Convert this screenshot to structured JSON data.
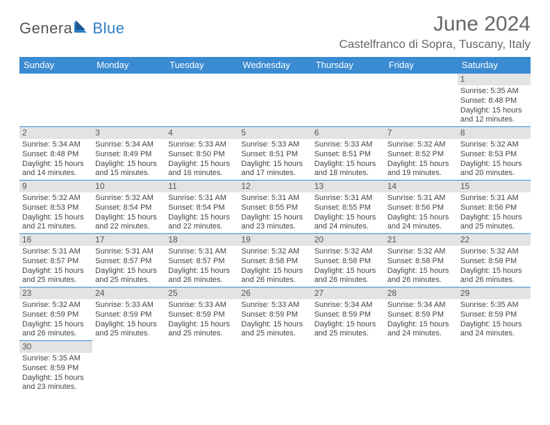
{
  "brand": {
    "part1": "Genera",
    "part2": "Blue"
  },
  "title": "June 2024",
  "location": "Castelfranco di Sopra, Tuscany, Italy",
  "colors": {
    "header_bg": "#3a8bd1",
    "header_fg": "#ffffff",
    "daynum_bg": "#e3e3e3",
    "border": "#3a8bd1",
    "brand_blue": "#2d7dc4",
    "brand_grey": "#555555",
    "text": "#444444"
  },
  "day_headers": [
    "Sunday",
    "Monday",
    "Tuesday",
    "Wednesday",
    "Thursday",
    "Friday",
    "Saturday"
  ],
  "weeks": [
    [
      null,
      null,
      null,
      null,
      null,
      null,
      {
        "n": "1",
        "sunrise": "Sunrise: 5:35 AM",
        "sunset": "Sunset: 8:48 PM",
        "daylight1": "Daylight: 15 hours",
        "daylight2": "and 12 minutes."
      }
    ],
    [
      {
        "n": "2",
        "sunrise": "Sunrise: 5:34 AM",
        "sunset": "Sunset: 8:48 PM",
        "daylight1": "Daylight: 15 hours",
        "daylight2": "and 14 minutes."
      },
      {
        "n": "3",
        "sunrise": "Sunrise: 5:34 AM",
        "sunset": "Sunset: 8:49 PM",
        "daylight1": "Daylight: 15 hours",
        "daylight2": "and 15 minutes."
      },
      {
        "n": "4",
        "sunrise": "Sunrise: 5:33 AM",
        "sunset": "Sunset: 8:50 PM",
        "daylight1": "Daylight: 15 hours",
        "daylight2": "and 16 minutes."
      },
      {
        "n": "5",
        "sunrise": "Sunrise: 5:33 AM",
        "sunset": "Sunset: 8:51 PM",
        "daylight1": "Daylight: 15 hours",
        "daylight2": "and 17 minutes."
      },
      {
        "n": "6",
        "sunrise": "Sunrise: 5:33 AM",
        "sunset": "Sunset: 8:51 PM",
        "daylight1": "Daylight: 15 hours",
        "daylight2": "and 18 minutes."
      },
      {
        "n": "7",
        "sunrise": "Sunrise: 5:32 AM",
        "sunset": "Sunset: 8:52 PM",
        "daylight1": "Daylight: 15 hours",
        "daylight2": "and 19 minutes."
      },
      {
        "n": "8",
        "sunrise": "Sunrise: 5:32 AM",
        "sunset": "Sunset: 8:53 PM",
        "daylight1": "Daylight: 15 hours",
        "daylight2": "and 20 minutes."
      }
    ],
    [
      {
        "n": "9",
        "sunrise": "Sunrise: 5:32 AM",
        "sunset": "Sunset: 8:53 PM",
        "daylight1": "Daylight: 15 hours",
        "daylight2": "and 21 minutes."
      },
      {
        "n": "10",
        "sunrise": "Sunrise: 5:32 AM",
        "sunset": "Sunset: 8:54 PM",
        "daylight1": "Daylight: 15 hours",
        "daylight2": "and 22 minutes."
      },
      {
        "n": "11",
        "sunrise": "Sunrise: 5:31 AM",
        "sunset": "Sunset: 8:54 PM",
        "daylight1": "Daylight: 15 hours",
        "daylight2": "and 22 minutes."
      },
      {
        "n": "12",
        "sunrise": "Sunrise: 5:31 AM",
        "sunset": "Sunset: 8:55 PM",
        "daylight1": "Daylight: 15 hours",
        "daylight2": "and 23 minutes."
      },
      {
        "n": "13",
        "sunrise": "Sunrise: 5:31 AM",
        "sunset": "Sunset: 8:55 PM",
        "daylight1": "Daylight: 15 hours",
        "daylight2": "and 24 minutes."
      },
      {
        "n": "14",
        "sunrise": "Sunrise: 5:31 AM",
        "sunset": "Sunset: 8:56 PM",
        "daylight1": "Daylight: 15 hours",
        "daylight2": "and 24 minutes."
      },
      {
        "n": "15",
        "sunrise": "Sunrise: 5:31 AM",
        "sunset": "Sunset: 8:56 PM",
        "daylight1": "Daylight: 15 hours",
        "daylight2": "and 25 minutes."
      }
    ],
    [
      {
        "n": "16",
        "sunrise": "Sunrise: 5:31 AM",
        "sunset": "Sunset: 8:57 PM",
        "daylight1": "Daylight: 15 hours",
        "daylight2": "and 25 minutes."
      },
      {
        "n": "17",
        "sunrise": "Sunrise: 5:31 AM",
        "sunset": "Sunset: 8:57 PM",
        "daylight1": "Daylight: 15 hours",
        "daylight2": "and 25 minutes."
      },
      {
        "n": "18",
        "sunrise": "Sunrise: 5:31 AM",
        "sunset": "Sunset: 8:57 PM",
        "daylight1": "Daylight: 15 hours",
        "daylight2": "and 26 minutes."
      },
      {
        "n": "19",
        "sunrise": "Sunrise: 5:32 AM",
        "sunset": "Sunset: 8:58 PM",
        "daylight1": "Daylight: 15 hours",
        "daylight2": "and 26 minutes."
      },
      {
        "n": "20",
        "sunrise": "Sunrise: 5:32 AM",
        "sunset": "Sunset: 8:58 PM",
        "daylight1": "Daylight: 15 hours",
        "daylight2": "and 26 minutes."
      },
      {
        "n": "21",
        "sunrise": "Sunrise: 5:32 AM",
        "sunset": "Sunset: 8:58 PM",
        "daylight1": "Daylight: 15 hours",
        "daylight2": "and 26 minutes."
      },
      {
        "n": "22",
        "sunrise": "Sunrise: 5:32 AM",
        "sunset": "Sunset: 8:58 PM",
        "daylight1": "Daylight: 15 hours",
        "daylight2": "and 26 minutes."
      }
    ],
    [
      {
        "n": "23",
        "sunrise": "Sunrise: 5:32 AM",
        "sunset": "Sunset: 8:59 PM",
        "daylight1": "Daylight: 15 hours",
        "daylight2": "and 26 minutes."
      },
      {
        "n": "24",
        "sunrise": "Sunrise: 5:33 AM",
        "sunset": "Sunset: 8:59 PM",
        "daylight1": "Daylight: 15 hours",
        "daylight2": "and 25 minutes."
      },
      {
        "n": "25",
        "sunrise": "Sunrise: 5:33 AM",
        "sunset": "Sunset: 8:59 PM",
        "daylight1": "Daylight: 15 hours",
        "daylight2": "and 25 minutes."
      },
      {
        "n": "26",
        "sunrise": "Sunrise: 5:33 AM",
        "sunset": "Sunset: 8:59 PM",
        "daylight1": "Daylight: 15 hours",
        "daylight2": "and 25 minutes."
      },
      {
        "n": "27",
        "sunrise": "Sunrise: 5:34 AM",
        "sunset": "Sunset: 8:59 PM",
        "daylight1": "Daylight: 15 hours",
        "daylight2": "and 25 minutes."
      },
      {
        "n": "28",
        "sunrise": "Sunrise: 5:34 AM",
        "sunset": "Sunset: 8:59 PM",
        "daylight1": "Daylight: 15 hours",
        "daylight2": "and 24 minutes."
      },
      {
        "n": "29",
        "sunrise": "Sunrise: 5:35 AM",
        "sunset": "Sunset: 8:59 PM",
        "daylight1": "Daylight: 15 hours",
        "daylight2": "and 24 minutes."
      }
    ],
    [
      {
        "n": "30",
        "sunrise": "Sunrise: 5:35 AM",
        "sunset": "Sunset: 8:59 PM",
        "daylight1": "Daylight: 15 hours",
        "daylight2": "and 23 minutes."
      },
      null,
      null,
      null,
      null,
      null,
      null
    ]
  ]
}
